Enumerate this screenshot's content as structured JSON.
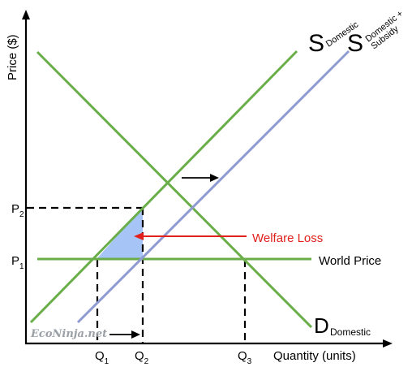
{
  "axes": {
    "y_label": "Price ($)",
    "x_label": "Quantity (units)"
  },
  "curves": {
    "supply_domestic": {
      "main": "S",
      "sub": "Domestic"
    },
    "supply_subsidy": {
      "main": "S",
      "sub_line1": "Domestic +",
      "sub_line2": "Subsidy"
    },
    "demand_domestic": {
      "main": "D",
      "sub": "Domestic"
    },
    "world_price": "World Price"
  },
  "price_ticks": {
    "p1": {
      "main": "P",
      "sub": "1"
    },
    "p2": {
      "main": "P",
      "sub": "2"
    }
  },
  "quantity_ticks": {
    "q1": {
      "main": "Q",
      "sub": "1"
    },
    "q2": {
      "main": "Q",
      "sub": "2"
    },
    "q3": {
      "main": "Q",
      "sub": "3"
    }
  },
  "annotations": {
    "welfare_loss": "Welfare Loss",
    "welfare_loss_color": "#e2211c",
    "welfare_area_color": "#a6c4f5"
  },
  "watermark": "EcoNinja.net",
  "colors": {
    "supply_demand_world": "#6aae4a",
    "supply_subsidy": "#8f9ad0"
  }
}
